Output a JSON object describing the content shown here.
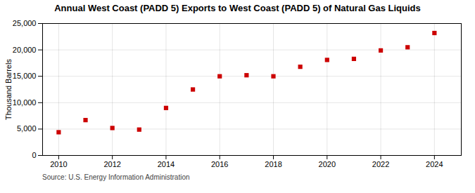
{
  "chart_data": {
    "type": "scatter",
    "title": "Annual West Coast (PADD 5) Exports to West Coast (PADD 5) of Natural Gas Liquids",
    "ylabel": "Thousand Barrels",
    "source": "Source: U.S. Energy Information Administration",
    "x": [
      2010,
      2011,
      2012,
      2013,
      2014,
      2015,
      2016,
      2017,
      2018,
      2019,
      2020,
      2021,
      2022,
      2023,
      2024
    ],
    "values": [
      4400,
      6700,
      5200,
      4900,
      9000,
      12500,
      15000,
      15200,
      15000,
      16800,
      18100,
      18300,
      19900,
      20500,
      23200
    ],
    "color": "#cc0000",
    "marker": "square",
    "xlim": [
      2009.4,
      2025.0
    ],
    "xticks": [
      2010,
      2012,
      2014,
      2016,
      2018,
      2020,
      2022,
      2024
    ],
    "ylim": [
      0,
      25000
    ],
    "yticks": [
      0,
      {
        "value": 5000,
        "label": "5,000"
      },
      {
        "value": 10000,
        "label": "10,000"
      },
      {
        "value": 15000,
        "label": "15,000"
      },
      {
        "value": 20000,
        "label": "20,000"
      },
      {
        "value": 25000,
        "label": "25,000"
      }
    ],
    "grid": true
  }
}
